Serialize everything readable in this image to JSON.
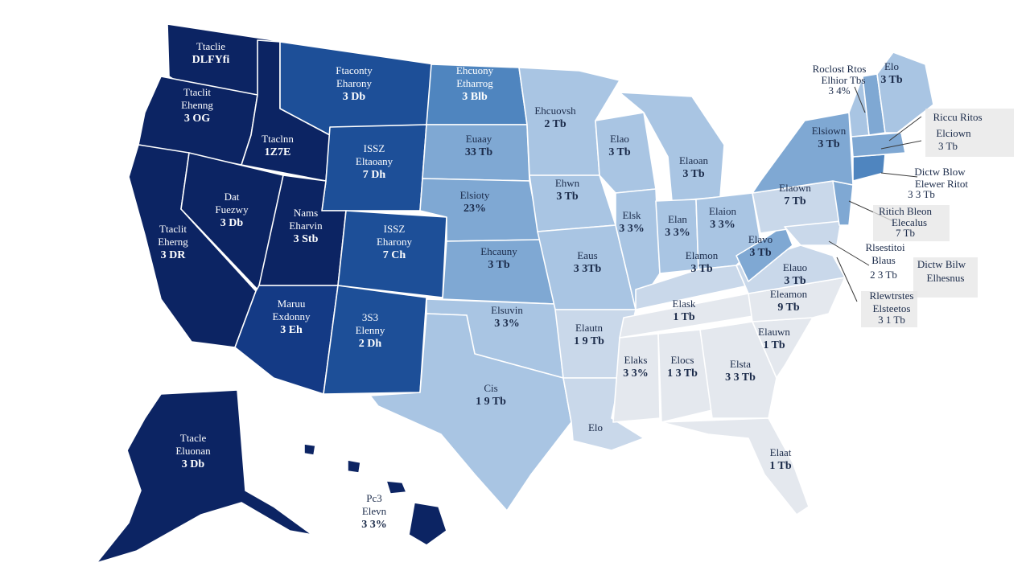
{
  "palette": {
    "navy": "#0c2463",
    "navy_mid": "#143a85",
    "blue": "#1d4f98",
    "steel": "#4f85bf",
    "sky": "#7fa8d3",
    "pale": "#a9c5e3",
    "mist": "#c9d8ea",
    "fog": "#e4e8ee",
    "white": "#ffffff"
  },
  "states": [
    {
      "id": "wa",
      "name_text": "Ttaclie",
      "stat_text": "DLFYfi",
      "color": "navy",
      "tone": "light"
    },
    {
      "id": "or",
      "name_text": "Ttaclit",
      "stat_text": "Ehenng",
      "extra_text": "3 OG",
      "color": "navy",
      "tone": "light"
    },
    {
      "id": "ca",
      "name_text": "Ttaclit",
      "stat_text": "Eherng",
      "extra_text": "3 DR",
      "color": "navy",
      "tone": "light"
    },
    {
      "id": "nv",
      "name_text": "Dat",
      "stat_text": "Fuezwy",
      "extra_text": "3 Db",
      "color": "navy",
      "tone": "light"
    },
    {
      "id": "id",
      "name_text": "Ttaclnn",
      "stat_text": "1Z7E",
      "color": "navy",
      "tone": "light"
    },
    {
      "id": "mt",
      "name_text": "Ftaconty",
      "stat_text": "Eharony",
      "extra_text": "3 Db",
      "color": "blue",
      "tone": "light"
    },
    {
      "id": "wy",
      "name_text": "ISSZ",
      "stat_text": "Eltaoany",
      "extra_text": "7 Dh",
      "color": "blue",
      "tone": "light"
    },
    {
      "id": "ut",
      "name_text": "Nams",
      "stat_text": "Eharvin",
      "extra_text": "3 Stb",
      "color": "navy",
      "tone": "light"
    },
    {
      "id": "co",
      "name_text": "ISSZ",
      "stat_text": "Eharony",
      "extra_text": "7 Ch",
      "color": "blue",
      "tone": "light"
    },
    {
      "id": "az",
      "name_text": "Maruu",
      "stat_text": "Exdonny",
      "extra_text": "3 Eh",
      "color": "navy_mid",
      "tone": "light"
    },
    {
      "id": "nm",
      "name_text": "3S3",
      "stat_text": "Elenny",
      "extra_text": "2 Dh",
      "color": "blue",
      "tone": "light"
    },
    {
      "id": "nd",
      "name_text": "Ehcuony",
      "stat_text": "Etharrog",
      "extra_text": "3 Blb",
      "color": "steel",
      "tone": "light"
    },
    {
      "id": "sd",
      "name_text": "Euaay",
      "stat_text": "33 Tb",
      "color": "sky",
      "tone": "dark"
    },
    {
      "id": "ne",
      "name_text": "Elsioty",
      "stat_text": "23%",
      "color": "sky",
      "tone": "dark"
    },
    {
      "id": "ks",
      "name_text": "Ehcauny",
      "stat_text": "3 Tb",
      "color": "sky",
      "tone": "dark"
    },
    {
      "id": "ok",
      "name_text": "Elsuvin",
      "stat_text": "3 3%",
      "color": "pale",
      "tone": "dark"
    },
    {
      "id": "tx",
      "name_text": "Cis",
      "stat_text": "1 9 Tb",
      "color": "pale",
      "tone": "dark"
    },
    {
      "id": "mn",
      "name_text": "Ehcuovsh",
      "stat_text": "2 Tb",
      "color": "pale",
      "tone": "dark"
    },
    {
      "id": "ia",
      "name_text": "Ehwn",
      "stat_text": "3 Tb",
      "color": "pale",
      "tone": "dark"
    },
    {
      "id": "mo",
      "name_text": "Eaus",
      "stat_text": "3 3Tb",
      "color": "pale",
      "tone": "dark"
    },
    {
      "id": "ar",
      "name_text": "Elautn",
      "stat_text": "1 9 Tb",
      "color": "mist",
      "tone": "dark"
    },
    {
      "id": "la",
      "name_text": "Elo",
      "stat_text": "",
      "color": "mist",
      "tone": "dark"
    },
    {
      "id": "wi",
      "name_text": "Elao",
      "stat_text": "3 Tb",
      "color": "pale",
      "tone": "dark"
    },
    {
      "id": "il",
      "name_text": "Elsk",
      "stat_text": "3 3%",
      "color": "pale",
      "tone": "dark"
    },
    {
      "id": "mi",
      "name_text": "Elaoan",
      "stat_text": "3 Tb",
      "color": "pale",
      "tone": "dark"
    },
    {
      "id": "in",
      "name_text": "Elan",
      "stat_text": "3 3%",
      "color": "pale",
      "tone": "dark"
    },
    {
      "id": "oh",
      "name_text": "Elaion",
      "stat_text": "3 3%",
      "color": "pale",
      "tone": "dark"
    },
    {
      "id": "ky",
      "name_text": "Elamon",
      "stat_text": "3 Tb",
      "color": "mist",
      "tone": "dark"
    },
    {
      "id": "tn",
      "name_text": "Elask",
      "stat_text": "1 Tb",
      "color": "fog",
      "tone": "dark"
    },
    {
      "id": "ms",
      "name_text": "Elaks",
      "stat_text": "3 3%",
      "color": "fog",
      "tone": "dark"
    },
    {
      "id": "al",
      "name_text": "Elocs",
      "stat_text": "1 3 Tb",
      "color": "fog",
      "tone": "dark"
    },
    {
      "id": "ga",
      "name_text": "Elsta",
      "stat_text": "3 3 Tb",
      "color": "fog",
      "tone": "dark"
    },
    {
      "id": "fl",
      "name_text": "Elaat",
      "stat_text": "1 Tb",
      "color": "fog",
      "tone": "dark"
    },
    {
      "id": "sc",
      "name_text": "Elauwn",
      "stat_text": "1 Tb",
      "color": "fog",
      "tone": "dark"
    },
    {
      "id": "nc",
      "name_text": "Eleamon",
      "stat_text": "9 Tb",
      "color": "fog",
      "tone": "dark"
    },
    {
      "id": "va",
      "name_text": "Elauo",
      "stat_text": "3 Tb",
      "color": "mist",
      "tone": "dark"
    },
    {
      "id": "wv",
      "name_text": "Elavo",
      "stat_text": "3 Tb",
      "color": "sky",
      "tone": "dark"
    },
    {
      "id": "pa",
      "name_text": "Elaown",
      "stat_text": "7 Tb",
      "color": "mist",
      "tone": "dark"
    },
    {
      "id": "ny",
      "name_text": "Elsiown",
      "stat_text": "3 Tb",
      "color": "sky",
      "tone": "dark"
    },
    {
      "id": "ak",
      "name_text": "Ttacle",
      "stat_text": "Eluonan",
      "extra_text": "3 Db",
      "color": "navy",
      "tone": "light"
    },
    {
      "id": "hi",
      "name_text": "Pc3",
      "stat_text": "Elevn",
      "extra_text": "3 3%",
      "color": "navy",
      "tone": "dark"
    },
    {
      "id": "me",
      "name_text": "Elo",
      "stat_text": "3 Tb",
      "color": "pale",
      "tone": "dark"
    },
    {
      "id": "nh",
      "name_text": "",
      "stat_text": "",
      "color": "sky",
      "tone": "dark"
    },
    {
      "id": "vt",
      "name_text": "",
      "stat_text": "",
      "color": "pale",
      "tone": "dark"
    },
    {
      "id": "ma",
      "name_text": "",
      "stat_text": "",
      "color": "sky",
      "tone": "dark"
    },
    {
      "id": "ct",
      "name_text": "",
      "stat_text": "",
      "color": "steel",
      "tone": "dark"
    },
    {
      "id": "nj",
      "name_text": "",
      "stat_text": "",
      "color": "sky",
      "tone": "dark"
    },
    {
      "id": "md",
      "name_text": "",
      "stat_text": "",
      "color": "mist",
      "tone": "dark"
    }
  ],
  "callouts": [
    {
      "id": "c1",
      "line1": "Roclost Rtos",
      "line2": "Elhior Tbs",
      "line3": "3 4%"
    },
    {
      "id": "c2",
      "line1": "Riccu Ritos",
      "line2": "Elciown",
      "line3": "3 Tb"
    },
    {
      "id": "c3",
      "line1": "Dictw Blow",
      "line2": "Elewer Ritot",
      "line3": "3 3 Tb"
    },
    {
      "id": "c4",
      "line1": "Ritich Bleon",
      "line2": "Elecalus",
      "line3": "7 Tb"
    },
    {
      "id": "c5",
      "line1": "Rlsestitoi",
      "line2": "Blaus",
      "line3": "2 3 Tb"
    },
    {
      "id": "c6",
      "line1": "Dictw Bilw",
      "line2": "Elhesnus",
      "line3": ""
    },
    {
      "id": "c7",
      "line1": "Rlewtrstes",
      "line2": "Elsteetos",
      "line3": "3 1 Tb"
    }
  ]
}
